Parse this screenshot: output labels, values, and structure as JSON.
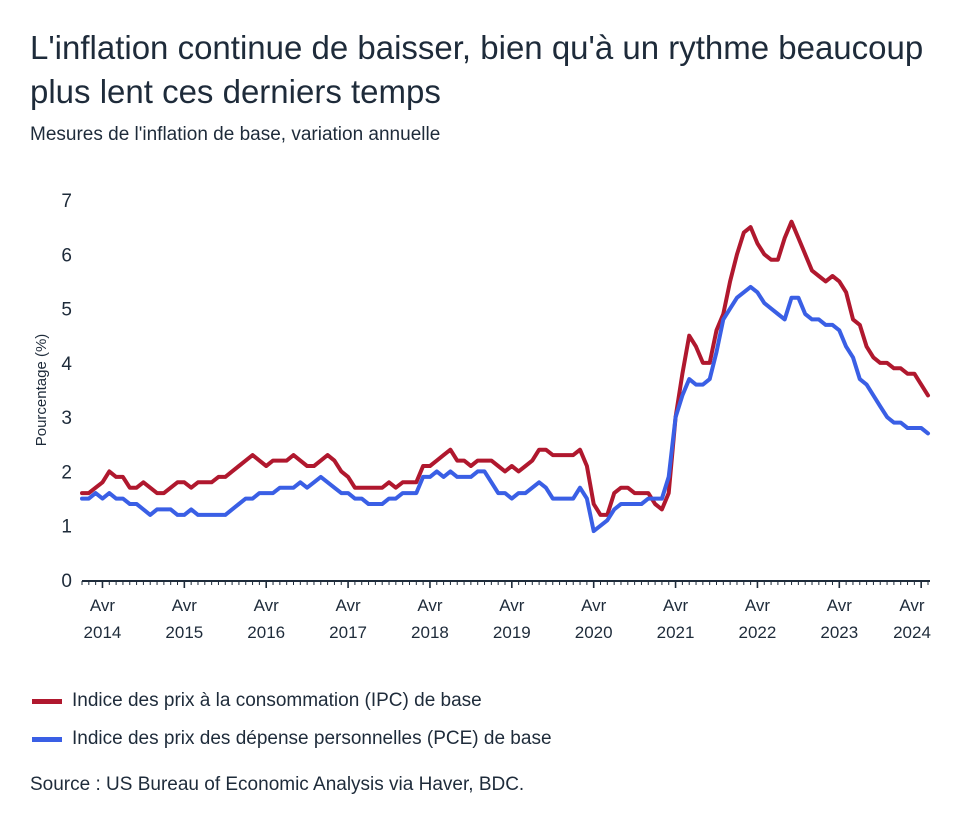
{
  "header": {
    "title": "L'inflation continue de baisser, bien qu'à un rythme beaucoup plus lent ces derniers temps",
    "subtitle": "Mesures de l'inflation de base, variation annuelle"
  },
  "legend": {
    "items": [
      {
        "label": "Indice des prix à la consommation (IPC) de base",
        "color": "#b0182e"
      },
      {
        "label": "Indice des prix des dépense personnelles (PCE) de base",
        "color": "#3a5fe5"
      }
    ]
  },
  "footer": {
    "source": "Source : US Bureau of Economic Analysis via Haver, BDC."
  },
  "chart_data": {
    "type": "line",
    "ylabel": "Pourcentage (%)",
    "ylim": [
      0,
      7
    ],
    "yticks": [
      0,
      1,
      2,
      3,
      4,
      5,
      6,
      7
    ],
    "x_start": "2014-01",
    "x_end": "2024-05",
    "xtick_labels": [
      {
        "month": "2014-04",
        "line1": "Avr",
        "line2": "2014"
      },
      {
        "month": "2015-04",
        "line1": "Avr",
        "line2": "2015"
      },
      {
        "month": "2016-04",
        "line1": "Avr",
        "line2": "2016"
      },
      {
        "month": "2017-04",
        "line1": "Avr",
        "line2": "2017"
      },
      {
        "month": "2018-04",
        "line1": "Avr",
        "line2": "2018"
      },
      {
        "month": "2019-04",
        "line1": "Avr",
        "line2": "2019"
      },
      {
        "month": "2020-04",
        "line1": "Avr",
        "line2": "2020"
      },
      {
        "month": "2021-04",
        "line1": "Avr",
        "line2": "2021"
      },
      {
        "month": "2022-04",
        "line1": "Avr",
        "line2": "2022"
      },
      {
        "month": "2023-04",
        "line1": "Avr",
        "line2": "2023"
      },
      {
        "month": "2024-04",
        "line1": "Avr",
        "line2": "2024"
      }
    ],
    "grid": false,
    "legend_placement": "bottom",
    "series": [
      {
        "name": "Indice des prix à la consommation (IPC) de base",
        "color": "#b0182e",
        "start": "2014-01",
        "values": [
          1.6,
          1.6,
          1.7,
          1.8,
          2.0,
          1.9,
          1.9,
          1.7,
          1.7,
          1.8,
          1.7,
          1.6,
          1.6,
          1.7,
          1.8,
          1.8,
          1.7,
          1.8,
          1.8,
          1.8,
          1.9,
          1.9,
          2.0,
          2.1,
          2.2,
          2.3,
          2.2,
          2.1,
          2.2,
          2.2,
          2.2,
          2.3,
          2.2,
          2.1,
          2.1,
          2.2,
          2.3,
          2.2,
          2.0,
          1.9,
          1.7,
          1.7,
          1.7,
          1.7,
          1.7,
          1.8,
          1.7,
          1.8,
          1.8,
          1.8,
          2.1,
          2.1,
          2.2,
          2.3,
          2.4,
          2.2,
          2.2,
          2.1,
          2.2,
          2.2,
          2.2,
          2.1,
          2.0,
          2.1,
          2.0,
          2.1,
          2.2,
          2.4,
          2.4,
          2.3,
          2.3,
          2.3,
          2.3,
          2.4,
          2.1,
          1.4,
          1.2,
          1.2,
          1.6,
          1.7,
          1.7,
          1.6,
          1.6,
          1.6,
          1.4,
          1.3,
          1.6,
          3.0,
          3.8,
          4.5,
          4.3,
          4.0,
          4.0,
          4.6,
          4.9,
          5.5,
          6.0,
          6.4,
          6.5,
          6.2,
          6.0,
          5.9,
          5.9,
          6.3,
          6.6,
          6.3,
          6.0,
          5.7,
          5.6,
          5.5,
          5.6,
          5.5,
          5.3,
          4.8,
          4.7,
          4.3,
          4.1,
          4.0,
          4.0,
          3.9,
          3.9,
          3.8,
          3.8,
          3.6,
          3.4
        ]
      },
      {
        "name": "Indice des prix des dépense personnelles (PCE) de base",
        "color": "#3a5fe5",
        "start": "2014-01",
        "values": [
          1.5,
          1.5,
          1.6,
          1.5,
          1.6,
          1.5,
          1.5,
          1.4,
          1.4,
          1.3,
          1.2,
          1.3,
          1.3,
          1.3,
          1.2,
          1.2,
          1.3,
          1.2,
          1.2,
          1.2,
          1.2,
          1.2,
          1.3,
          1.4,
          1.5,
          1.5,
          1.6,
          1.6,
          1.6,
          1.7,
          1.7,
          1.7,
          1.8,
          1.7,
          1.8,
          1.9,
          1.8,
          1.7,
          1.6,
          1.6,
          1.5,
          1.5,
          1.4,
          1.4,
          1.4,
          1.5,
          1.5,
          1.6,
          1.6,
          1.6,
          1.9,
          1.9,
          2.0,
          1.9,
          2.0,
          1.9,
          1.9,
          1.9,
          2.0,
          2.0,
          1.8,
          1.6,
          1.6,
          1.5,
          1.6,
          1.6,
          1.7,
          1.8,
          1.7,
          1.5,
          1.5,
          1.5,
          1.5,
          1.7,
          1.5,
          0.9,
          1.0,
          1.1,
          1.3,
          1.4,
          1.4,
          1.4,
          1.4,
          1.5,
          1.5,
          1.5,
          1.9,
          3.0,
          3.4,
          3.7,
          3.6,
          3.6,
          3.7,
          4.2,
          4.8,
          5.0,
          5.2,
          5.3,
          5.4,
          5.3,
          5.1,
          5.0,
          4.9,
          4.8,
          5.2,
          5.2,
          4.9,
          4.8,
          4.8,
          4.7,
          4.7,
          4.6,
          4.3,
          4.1,
          3.7,
          3.6,
          3.4,
          3.2,
          3.0,
          2.9,
          2.9,
          2.8,
          2.8,
          2.8,
          2.7
        ]
      }
    ]
  }
}
